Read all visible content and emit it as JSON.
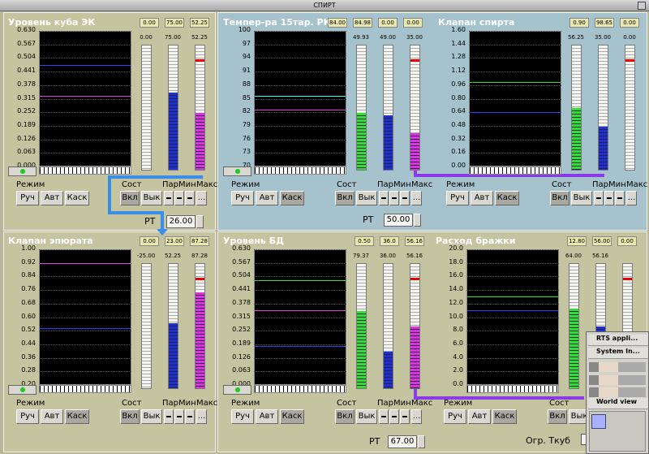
{
  "window_title": "СПИРТ",
  "controllers": [
    {
      "title": "Уровень куба ЭК",
      "boxes": [
        "0.00",
        "75.00",
        "52.25"
      ],
      "gauge_labels": [
        "0.00",
        "75.00",
        "52.25"
      ],
      "yticks": [
        "0.630",
        "0.567",
        "0.504",
        "0.441",
        "0.378",
        "0.315",
        "0.252",
        "0.189",
        "0.126",
        "0.063",
        "0.000"
      ]
    },
    {
      "title": "Темпер-ра 15тар. РК",
      "boxes": [
        "84.00",
        "84.98",
        "0.00",
        "0.00"
      ],
      "gauge_labels": [
        "49.93",
        "49.00",
        "35.00"
      ],
      "yticks": [
        "100",
        "97",
        "94",
        "91",
        "88",
        "85",
        "82",
        "79",
        "76",
        "73",
        "70"
      ]
    },
    {
      "title": "Клапан спирта",
      "boxes": [
        "0.90",
        "98.65",
        "0.00"
      ],
      "gauge_labels": [
        "56.25",
        "35.00",
        "0.00"
      ],
      "yticks": [
        "1.60",
        "1.44",
        "1.28",
        "1.12",
        "0.96",
        "0.80",
        "0.64",
        "0.48",
        "0.32",
        "0.16",
        "0.00"
      ]
    },
    {
      "title": "Клапан эпюрата",
      "boxes": [
        "0.00",
        "23.00",
        "87.28"
      ],
      "gauge_labels": [
        "-25.00",
        "52.25",
        "87.28"
      ],
      "yticks": [
        "1.00",
        "0.92",
        "0.84",
        "0.76",
        "0.68",
        "0.60",
        "0.52",
        "0.44",
        "0.36",
        "0.28",
        "0.20"
      ]
    },
    {
      "title": "Уровень БД",
      "boxes": [
        "0.50",
        "36.0",
        "56.16"
      ],
      "gauge_labels": [
        "79.37",
        "36.00",
        "56.16"
      ],
      "yticks": [
        "0.630",
        "0.567",
        "0.504",
        "0.441",
        "0.378",
        "0.315",
        "0.252",
        "0.189",
        "0.126",
        "0.063",
        "0.000"
      ]
    },
    {
      "title": "Расход бражки",
      "boxes": [
        "12.80",
        "56.00",
        "0.00"
      ],
      "gauge_labels": [
        "64.00",
        "56.16"
      ],
      "yticks": [
        "20.0",
        "18.0",
        "16.0",
        "14.0",
        "12.0",
        "10.0",
        "8.0",
        "6.0",
        "4.0",
        "2.0",
        "0.0"
      ]
    }
  ],
  "labels": {
    "mode": "Режим",
    "state": "Сост",
    "param": "Пар",
    "min": "Мин",
    "max": "Макс",
    "manual": "Руч",
    "auto": "Авт",
    "cascade": "Каск",
    "on": "Вкл",
    "off": "Вык",
    "more": "...",
    "rt": "РТ",
    "limit": "Огр. Ткуб"
  },
  "setpoints": [
    "26.00",
    "50.00",
    "67.00"
  ],
  "popup": {
    "items": [
      "RTS appli...",
      "System In...",
      "World view"
    ]
  }
}
